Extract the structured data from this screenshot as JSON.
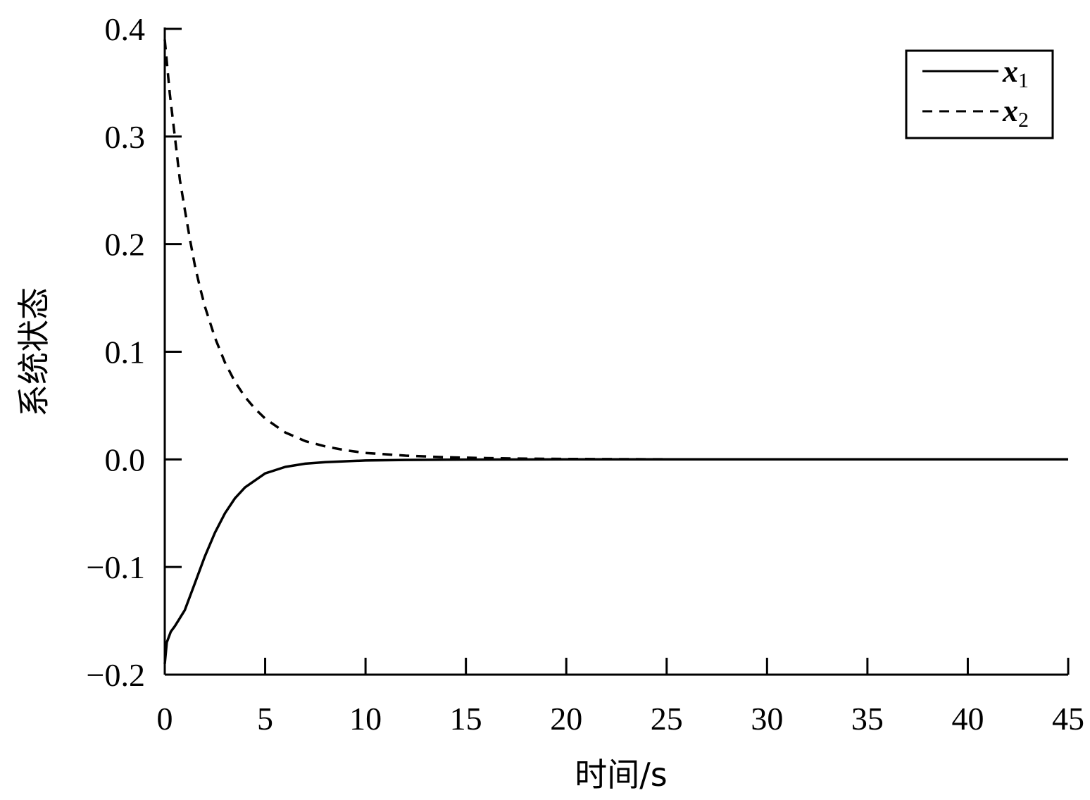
{
  "chart_data": {
    "type": "line",
    "xlabel": "时间/s",
    "ylabel": "系统状态",
    "xlim": [
      0,
      45
    ],
    "ylim": [
      -0.2,
      0.4
    ],
    "x_ticks": [
      0,
      5,
      10,
      15,
      20,
      25,
      30,
      35,
      40,
      45
    ],
    "x_tick_labels": [
      "0",
      "5",
      "10",
      "15",
      "20",
      "25",
      "30",
      "35",
      "40",
      "45"
    ],
    "y_ticks": [
      -0.2,
      -0.1,
      0.0,
      0.1,
      0.2,
      0.3,
      0.4
    ],
    "y_tick_labels": [
      "−0.2",
      "−0.1",
      "0.0",
      "0.1",
      "0.2",
      "0.3",
      "0.4"
    ],
    "grid": false,
    "legend_position": "top-right",
    "series": [
      {
        "name": "x1",
        "legend_base": "x",
        "legend_sub": "1",
        "style": "solid",
        "color": "#000000",
        "x": [
          0,
          0.1,
          0.3,
          0.5,
          1.0,
          1.5,
          2.0,
          2.5,
          3.0,
          3.5,
          4.0,
          5.0,
          6.0,
          7.0,
          8.0,
          10.0,
          12.0,
          15.0,
          20.0,
          25.0,
          30.0,
          35.0,
          40.0,
          45.0
        ],
        "y": [
          -0.19,
          -0.17,
          -0.16,
          -0.155,
          -0.14,
          -0.115,
          -0.09,
          -0.068,
          -0.05,
          -0.036,
          -0.026,
          -0.013,
          -0.007,
          -0.004,
          -0.0025,
          -0.001,
          -0.0005,
          -0.0002,
          0.0,
          0.0,
          0.0,
          0.0,
          0.0,
          0.0
        ]
      },
      {
        "name": "x2",
        "legend_base": "x",
        "legend_sub": "2",
        "style": "dashed",
        "color": "#000000",
        "x": [
          0,
          0.25,
          0.5,
          0.75,
          1.0,
          1.25,
          1.5,
          1.75,
          2.0,
          2.5,
          3.0,
          3.5,
          4.0,
          4.5,
          5.0,
          6.0,
          7.0,
          8.0,
          9.0,
          10.0,
          12.0,
          14.0,
          16.0,
          18.0,
          20.0,
          25.0,
          30.0,
          35.0,
          40.0,
          45.0
        ],
        "y": [
          0.39,
          0.34,
          0.3,
          0.26,
          0.232,
          0.205,
          0.18,
          0.16,
          0.142,
          0.113,
          0.09,
          0.072,
          0.058,
          0.047,
          0.038,
          0.025,
          0.017,
          0.012,
          0.0085,
          0.006,
          0.0035,
          0.002,
          0.0012,
          0.0007,
          0.0004,
          0.0001,
          0.0,
          0.0,
          0.0,
          0.0
        ]
      }
    ]
  }
}
